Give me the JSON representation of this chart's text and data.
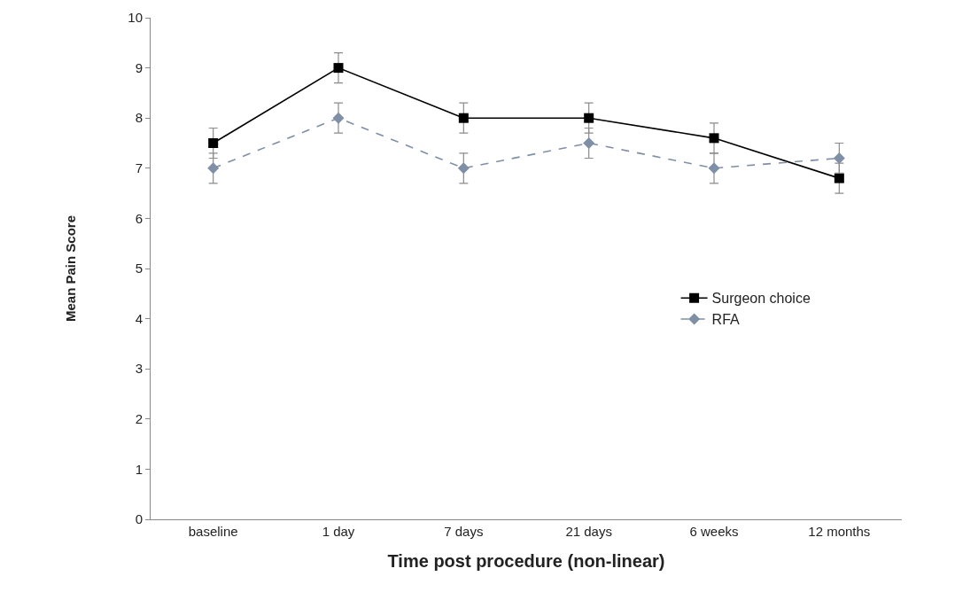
{
  "chart_data": {
    "type": "line",
    "xlabel": "Time post procedure (non-linear)",
    "ylabel": "Mean Pain Score",
    "categories": [
      "baseline",
      "1 day",
      "7 days",
      "21 days",
      "6 weeks",
      "12 months"
    ],
    "series": [
      {
        "name": "Surgeon choice",
        "color": "#000000",
        "marker": "square",
        "line_style": "solid",
        "values": [
          7.5,
          9,
          8,
          8,
          7.6,
          6.8
        ],
        "errors": [
          0.3,
          0.3,
          0.3,
          0.3,
          0.3,
          0.3
        ]
      },
      {
        "name": "RFA",
        "color": "#7f8fa6",
        "marker": "diamond",
        "line_style": "dashed",
        "values": [
          7,
          8,
          7,
          7.5,
          7,
          7.2
        ],
        "errors": [
          0.3,
          0.3,
          0.3,
          0.3,
          0.3,
          0.3
        ]
      }
    ],
    "ylim": [
      0,
      10
    ],
    "yticks": [
      0,
      1,
      2,
      3,
      4,
      5,
      6,
      7,
      8,
      9,
      10
    ],
    "grid": false,
    "legend": "right"
  }
}
